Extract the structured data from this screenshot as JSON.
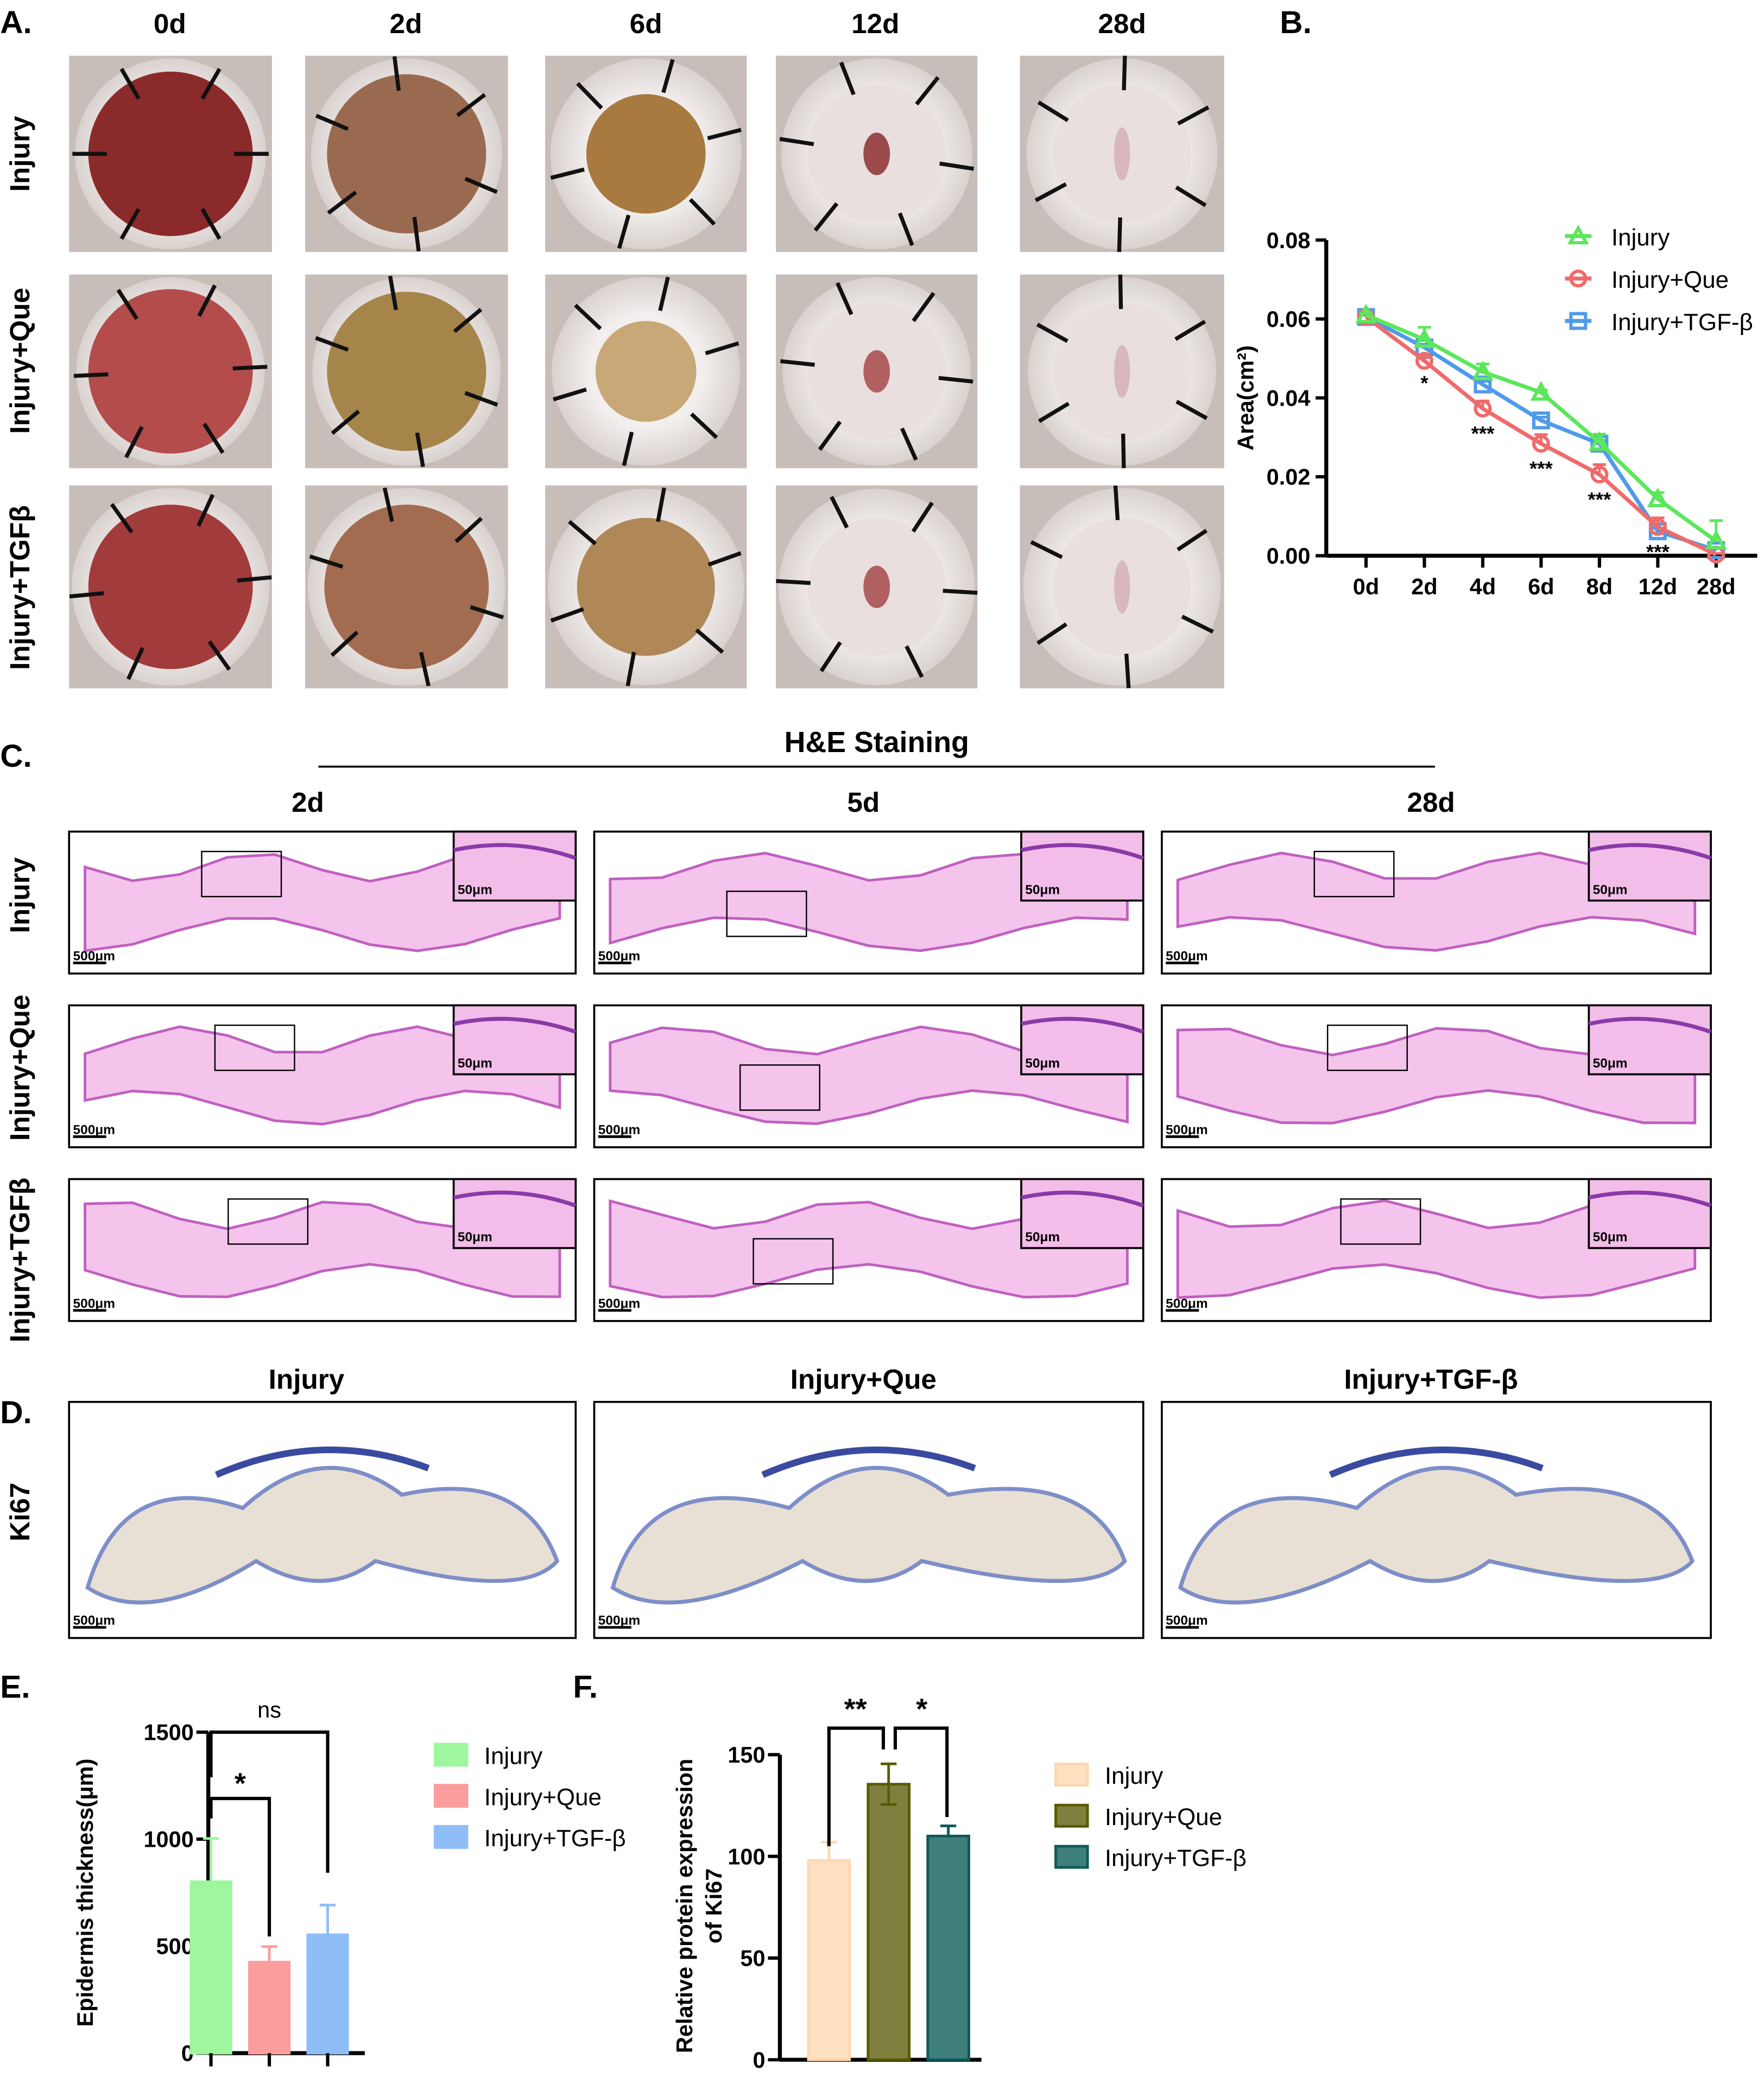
{
  "panel_labels": [
    "A.",
    "B.",
    "C.",
    "D.",
    "E.",
    "F."
  ],
  "panel_a": {
    "columns": [
      "0d",
      "2d",
      "6d",
      "12d",
      "28d"
    ],
    "rows": [
      "Injury",
      "Injury+Que",
      "Injury+TGFβ"
    ]
  },
  "panel_c": {
    "title": "H&E Staining",
    "columns": [
      "2d",
      "5d",
      "28d"
    ],
    "rows": [
      "Injury",
      "Injury+Que",
      "Injury+TGFβ"
    ],
    "inset_scale": "50μm",
    "main_scale": "500μm"
  },
  "panel_d": {
    "columns": [
      "Injury",
      "Injury+Que",
      "Injury+TGF-β"
    ],
    "row_label": "Ki67",
    "main_scale": "500μm"
  },
  "chart_data": [
    {
      "id": "B",
      "type": "line",
      "ylabel": "Area(cm²)",
      "categories": [
        "0d",
        "2d",
        "4d",
        "6d",
        "8d",
        "12d",
        "28d"
      ],
      "ylim": [
        0,
        0.08
      ],
      "yticks": [
        "0.00",
        "0.02",
        "0.04",
        "0.06",
        "0.08"
      ],
      "legend_position": "top-right",
      "series": [
        {
          "name": "Injury",
          "marker": "triangle",
          "color": "#5ce65c",
          "values": [
            0.061,
            0.0548,
            0.0466,
            0.0414,
            0.0287,
            0.0144,
            0.0037
          ],
          "error": [
            0.0005,
            0.0031,
            0.002,
            0.0006,
            0.0021,
            0.0016,
            0.0052
          ]
        },
        {
          "name": "Injury+Que",
          "marker": "circle",
          "color": "#f06a6a",
          "values": [
            0.0605,
            0.0494,
            0.0373,
            0.0284,
            0.0206,
            0.0073,
            0.0003
          ],
          "error": [
            0.0005,
            0.0008,
            0.0019,
            0.0023,
            0.0025,
            0.0023,
            0.0003
          ]
        },
        {
          "name": "Injury+TGF-β",
          "marker": "square",
          "color": "#4f9aea",
          "values": [
            0.0605,
            0.0528,
            0.0434,
            0.0343,
            0.0284,
            0.0062,
            0.0014
          ],
          "error": [
            0.0005,
            0.0008,
            0.0008,
            0.0008,
            0.0008,
            0.0008,
            0.0006
          ]
        }
      ],
      "annotations": [
        {
          "category": "2d",
          "text": "*"
        },
        {
          "category": "4d",
          "text": "***"
        },
        {
          "category": "6d",
          "text": "***"
        },
        {
          "category": "8d",
          "text": "***"
        },
        {
          "category": "12d",
          "text": "***"
        }
      ]
    },
    {
      "id": "E",
      "type": "bar",
      "ylabel": "Epidermis thickness(μm)",
      "categories": [
        "Injury",
        "Injury+Que",
        "Injury+TGF-β"
      ],
      "values": [
        801,
        425,
        553
      ],
      "error": [
        202,
        73,
        139
      ],
      "colors": [
        "#9ef79e",
        "#fb9d9d",
        "#8fbef7"
      ],
      "ylim": [
        0,
        1500
      ],
      "yticks": [
        "0",
        "500",
        "1000",
        "1500"
      ],
      "legend_position": "right",
      "significance": [
        {
          "from": "Injury",
          "to": "Injury+Que",
          "text": "*"
        },
        {
          "from": "Injury",
          "to": "Injury+TGF-β",
          "text": "ns"
        }
      ]
    },
    {
      "id": "F",
      "type": "bar",
      "ylabel": [
        "Relative protein expression",
        "of Ki67"
      ],
      "categories": [
        "Injury",
        "Injury+Que",
        "Injury+TGF-β"
      ],
      "values": [
        98,
        135.5,
        110
      ],
      "error": [
        9,
        10,
        5
      ],
      "colors": [
        "#ffe0c0",
        "#7f7f40",
        "#3e7f7c"
      ],
      "edge_colors": [
        "#ffd6ad",
        "#5a5a00",
        "#0d5a58"
      ],
      "ylim": [
        0,
        150
      ],
      "yticks": [
        "0",
        "50",
        "100",
        "150"
      ],
      "legend_position": "right",
      "significance": [
        {
          "from": "Injury",
          "to": "Injury+Que",
          "text": "**"
        },
        {
          "from": "Injury+Que",
          "to": "Injury+TGF-β",
          "text": "*"
        }
      ]
    }
  ]
}
